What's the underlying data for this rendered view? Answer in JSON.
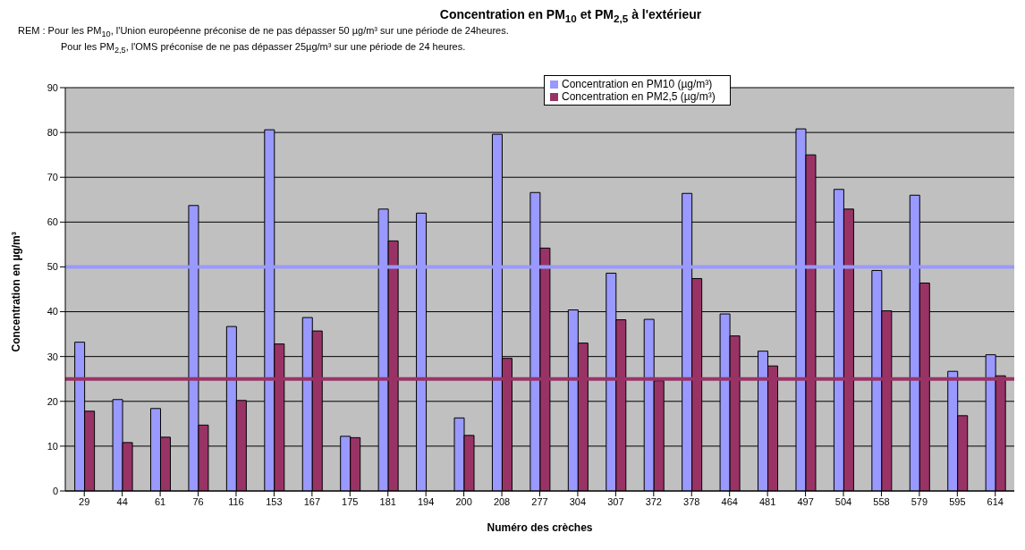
{
  "chart_data": {
    "type": "bar",
    "title": "Concentration en PM$_{10}$ et PM$_{2,5}$ à l'extérieur",
    "annotations": [
      "REM : Pour les PM$_{10}$, l'Union européenne préconise de ne pas dépasser 50 µg/m³ sur une période de 24heures.",
      "Pour les PM$_{2,5}$, l'OMS préconise de ne pas dépasser 25µg/m³ sur une période de 24 heures."
    ],
    "xlabel": "Numéro des crèches",
    "ylabel": "Concentration en µg/m³",
    "categories": [
      "29",
      "44",
      "61",
      "76",
      "116",
      "153",
      "167",
      "175",
      "181",
      "194",
      "200",
      "208",
      "277",
      "304",
      "307",
      "372",
      "378",
      "464",
      "481",
      "497",
      "504",
      "558",
      "579",
      "595",
      "614"
    ],
    "series": [
      {
        "name": "Concentration en PM10 (µg/m³)",
        "color": "#9999ff",
        "values": [
          33.2,
          20.4,
          18.4,
          63.7,
          36.7,
          80.6,
          38.7,
          12.2,
          62.9,
          62.0,
          16.3,
          79.6,
          66.6,
          40.4,
          48.6,
          38.3,
          66.4,
          39.5,
          31.2,
          80.8,
          67.3,
          49.2,
          66.0,
          26.7,
          30.4
        ]
      },
      {
        "name": "Concentration en PM2,5 (µg/m³)",
        "color": "#993366",
        "values": [
          17.8,
          10.8,
          12.0,
          14.7,
          20.2,
          32.8,
          35.7,
          11.9,
          55.8,
          null,
          12.4,
          29.6,
          54.2,
          33.0,
          38.2,
          24.6,
          47.4,
          34.6,
          27.9,
          75.0,
          62.9,
          40.2,
          46.4,
          16.8,
          25.7
        ]
      }
    ],
    "ylim": [
      0,
      90
    ],
    "yticks": [
      0,
      10,
      20,
      30,
      40,
      50,
      60,
      70,
      80,
      90
    ],
    "grid": "y",
    "legend": "top",
    "ref_lines": [
      {
        "axis": "y",
        "value": 50,
        "color": "#9999ff"
      },
      {
        "axis": "y",
        "value": 25,
        "color": "#993366"
      }
    ]
  }
}
